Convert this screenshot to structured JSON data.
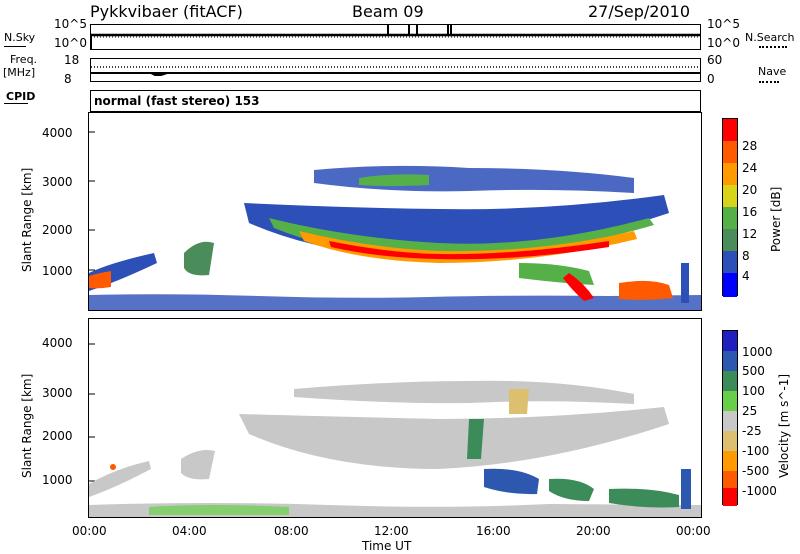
{
  "header": {
    "station": "Pykkvibaer (fitACF)",
    "beam": "Beam 09",
    "date": "27/Sep/2010"
  },
  "noise_panel": {
    "left_label": "N.Sky",
    "right_label": "N.Search",
    "left_ticks": [
      "10^5",
      "10^0"
    ],
    "right_ticks": [
      "10^5",
      "10^0"
    ]
  },
  "freq_panel": {
    "left_label": "Freq.",
    "left_unit": "[MHz]",
    "right_label": "Nave",
    "left_ticks": [
      "18",
      "8"
    ],
    "right_ticks": [
      "60",
      "0"
    ]
  },
  "cpid": {
    "label": "CPID",
    "text": "normal (fast stereo) 153"
  },
  "x_axis": {
    "label": "Time UT",
    "ticks": [
      "00:00",
      "04:00",
      "08:00",
      "12:00",
      "16:00",
      "20:00",
      "00:00"
    ]
  },
  "colors": {
    "power_scale": [
      "#0000ff",
      "#2c4fb8",
      "#4a8c5a",
      "#56b048",
      "#d8d41c",
      "#ff9a00",
      "#ff5a00",
      "#ff0000"
    ],
    "velocity_scale": [
      "#ff0000",
      "#ff5a00",
      "#ff9a00",
      "#dcc070",
      "#c8c8c8",
      "#68d048",
      "#3c8c5a",
      "#2c58b0",
      "#2020c0"
    ]
  },
  "chart_data": [
    {
      "type": "heatmap",
      "title": "",
      "xlabel": "Time UT",
      "ylabel": "Slant Range [km]",
      "y_ticks": [
        "1000",
        "2000",
        "3000",
        "4000"
      ],
      "ylim": [
        200,
        4700
      ],
      "colorbar_label": "Power [dB]",
      "colorbar_ticks": [
        "4",
        "8",
        "12",
        "16",
        "20",
        "24",
        "28"
      ],
      "colorbar_range": [
        0,
        30
      ]
    },
    {
      "type": "heatmap",
      "title": "",
      "xlabel": "Time UT",
      "ylabel": "Slant Range [km]",
      "y_ticks": [
        "1000",
        "2000",
        "3000",
        "4000"
      ],
      "ylim": [
        200,
        4700
      ],
      "colorbar_label": "Velocity [m s^-1]",
      "colorbar_ticks": [
        "1000",
        "500",
        "100",
        "25",
        "-25",
        "-100",
        "-500",
        "-1000"
      ],
      "colorbar_range": [
        -1000,
        1000
      ]
    }
  ]
}
